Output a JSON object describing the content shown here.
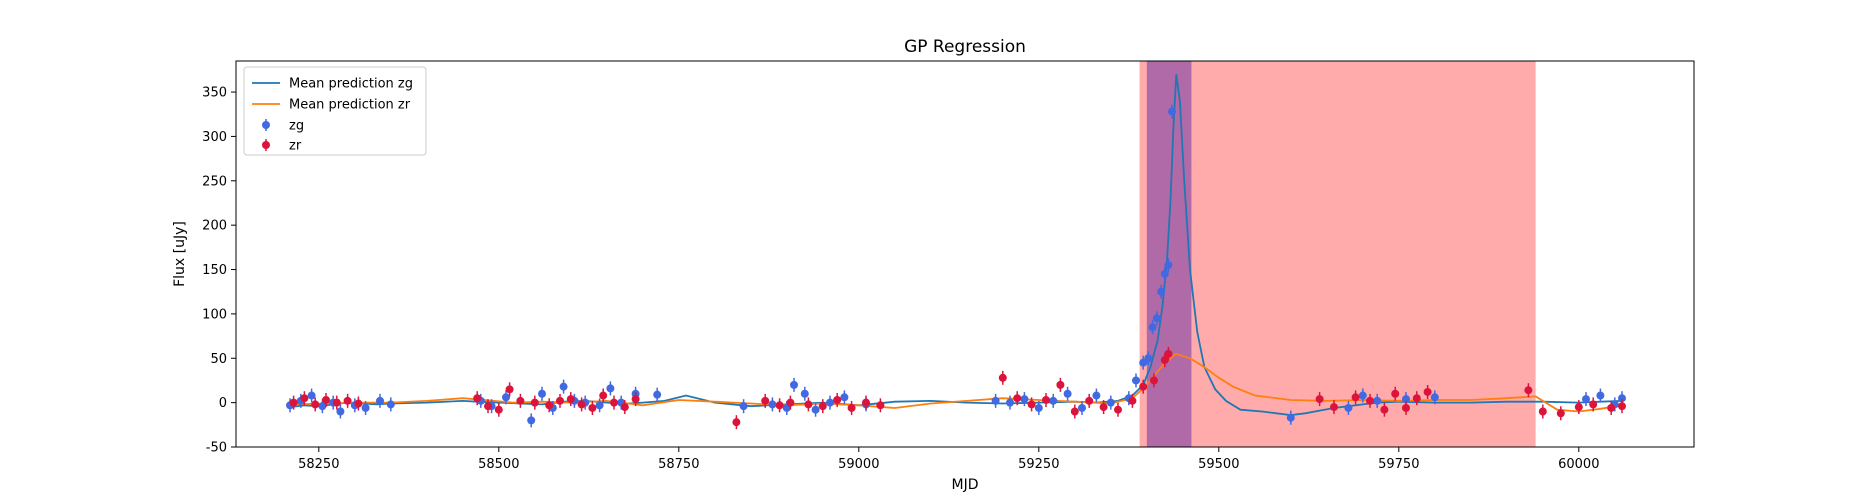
{
  "chart_data": {
    "type": "scatter",
    "title": "GP Regression",
    "xlabel": "MJD",
    "ylabel": "Flux [uJy]",
    "xlim": [
      58135,
      60160
    ],
    "ylim": [
      -50,
      385
    ],
    "xticks": [
      58250,
      58500,
      58750,
      59000,
      59250,
      59500,
      59750,
      60000
    ],
    "yticks": [
      -50,
      0,
      50,
      100,
      150,
      200,
      250,
      300,
      350
    ],
    "legend_position": "upper-left",
    "legend": {
      "line_zg": "Mean prediction zg",
      "line_zr": "Mean prediction zr",
      "points_zg": "zg",
      "points_zr": "zr"
    },
    "colors": {
      "line_zg": "#1f77b4",
      "line_zr": "#ff7f0e",
      "points_zg": "#4169e1",
      "points_zr": "#dc143c",
      "span_red": "#ff6666",
      "span_purple": "#7b3fa6"
    },
    "spans": [
      {
        "x0": 59390,
        "x1": 59940,
        "color": "#ff6666",
        "opacity": 0.55
      },
      {
        "x0": 59400,
        "x1": 59462,
        "color": "#7b3fa6",
        "opacity": 0.6
      }
    ],
    "series": [
      {
        "name": "Mean prediction zg",
        "kind": "line",
        "x": [
          58210,
          58230,
          58250,
          58270,
          58290,
          58310,
          58330,
          58350,
          58400,
          58450,
          58470,
          58500,
          58530,
          58560,
          58590,
          58620,
          58650,
          58680,
          58700,
          58730,
          58760,
          58800,
          58850,
          58900,
          58950,
          59000,
          59050,
          59100,
          59150,
          59200,
          59250,
          59300,
          59330,
          59360,
          59380,
          59395,
          59405,
          59415,
          59422,
          59428,
          59433,
          59437,
          59441,
          59446,
          59452,
          59460,
          59470,
          59480,
          59495,
          59510,
          59530,
          59560,
          59580,
          59600,
          59620,
          59640,
          59660,
          59680,
          59700,
          59720,
          59750,
          59800,
          59850,
          59900,
          59950,
          60000,
          60030,
          60060
        ],
        "y": [
          -5,
          -3,
          -4,
          -2,
          0,
          -1,
          -2,
          -1,
          0,
          2,
          1,
          0,
          -1,
          -2,
          1,
          2,
          0,
          -1,
          0,
          2,
          8,
          0,
          -4,
          -2,
          0,
          -3,
          1,
          2,
          0,
          -1,
          0,
          1,
          0,
          2,
          8,
          20,
          40,
          70,
          110,
          160,
          230,
          310,
          370,
          340,
          250,
          150,
          80,
          40,
          15,
          2,
          -8,
          -10,
          -12,
          -14,
          -12,
          -9,
          -6,
          -4,
          -2,
          0,
          1,
          0,
          0,
          1,
          1,
          0,
          1,
          2
        ]
      },
      {
        "name": "Mean prediction zr",
        "kind": "line",
        "x": [
          58210,
          58260,
          58300,
          58350,
          58400,
          58450,
          58480,
          58520,
          58560,
          58600,
          58650,
          58700,
          58750,
          58800,
          58850,
          58900,
          58950,
          59000,
          59050,
          59100,
          59150,
          59200,
          59250,
          59300,
          59350,
          59380,
          59400,
          59420,
          59440,
          59460,
          59480,
          59500,
          59520,
          59550,
          59600,
          59650,
          59700,
          59750,
          59800,
          59850,
          59900,
          59940,
          59970,
          60000,
          60030,
          60060
        ],
        "y": [
          -2,
          -1,
          0,
          0,
          2,
          5,
          3,
          0,
          1,
          0,
          2,
          -3,
          3,
          1,
          -1,
          -3,
          -1,
          -3,
          -6,
          -1,
          2,
          5,
          3,
          1,
          -1,
          5,
          20,
          40,
          55,
          50,
          40,
          28,
          18,
          8,
          3,
          2,
          3,
          2,
          3,
          3,
          5,
          7,
          -8,
          -10,
          -7,
          -3
        ]
      },
      {
        "name": "zg",
        "kind": "points",
        "x": [
          58210,
          58225,
          58240,
          58255,
          58270,
          58280,
          58300,
          58315,
          58335,
          58350,
          58475,
          58490,
          58510,
          58545,
          58560,
          58575,
          58590,
          58605,
          58620,
          58640,
          58655,
          58670,
          58690,
          58720,
          58840,
          58880,
          58900,
          58910,
          58925,
          58940,
          58960,
          58980,
          59010,
          59190,
          59210,
          59230,
          59250,
          59270,
          59290,
          59310,
          59330,
          59350,
          59375,
          59385,
          59395,
          59402,
          59408,
          59414,
          59420,
          59425,
          59430,
          59435,
          59600,
          59680,
          59700,
          59720,
          59760,
          59800,
          60010,
          60030,
          60050,
          60060
        ],
        "y": [
          -3,
          2,
          8,
          -4,
          0,
          -10,
          -3,
          -6,
          2,
          -2,
          2,
          -4,
          6,
          -20,
          10,
          -6,
          18,
          2,
          0,
          -3,
          16,
          0,
          10,
          9,
          -4,
          -2,
          -6,
          20,
          10,
          -8,
          0,
          6,
          -2,
          2,
          0,
          4,
          -6,
          2,
          10,
          -6,
          8,
          0,
          5,
          25,
          45,
          50,
          85,
          95,
          125,
          145,
          155,
          328,
          -17,
          -6,
          8,
          2,
          4,
          6,
          4,
          8,
          -2,
          5
        ]
      },
      {
        "name": "zr",
        "kind": "points",
        "x": [
          58215,
          58230,
          58245,
          58260,
          58275,
          58290,
          58305,
          58470,
          58485,
          58500,
          58515,
          58530,
          58550,
          58570,
          58585,
          58600,
          58615,
          58630,
          58645,
          58660,
          58675,
          58690,
          58830,
          58870,
          58890,
          58905,
          58930,
          58950,
          58970,
          58990,
          59010,
          59030,
          59200,
          59220,
          59240,
          59260,
          59280,
          59300,
          59320,
          59340,
          59360,
          59380,
          59395,
          59410,
          59425,
          59430,
          59640,
          59660,
          59690,
          59710,
          59730,
          59745,
          59760,
          59775,
          59790,
          59930,
          59950,
          59975,
          60000,
          60020,
          60045,
          60060
        ],
        "y": [
          0,
          5,
          -2,
          3,
          0,
          2,
          -1,
          5,
          -4,
          -8,
          15,
          2,
          0,
          -3,
          2,
          4,
          -2,
          -6,
          8,
          0,
          -5,
          4,
          -22,
          2,
          -3,
          0,
          -2,
          -4,
          3,
          -6,
          0,
          -3,
          28,
          5,
          -2,
          3,
          20,
          -10,
          2,
          -5,
          -8,
          2,
          18,
          25,
          48,
          55,
          4,
          -5,
          6,
          2,
          -8,
          10,
          -6,
          5,
          12,
          14,
          -10,
          -12,
          -5,
          -2,
          -6,
          -4
        ]
      }
    ]
  }
}
